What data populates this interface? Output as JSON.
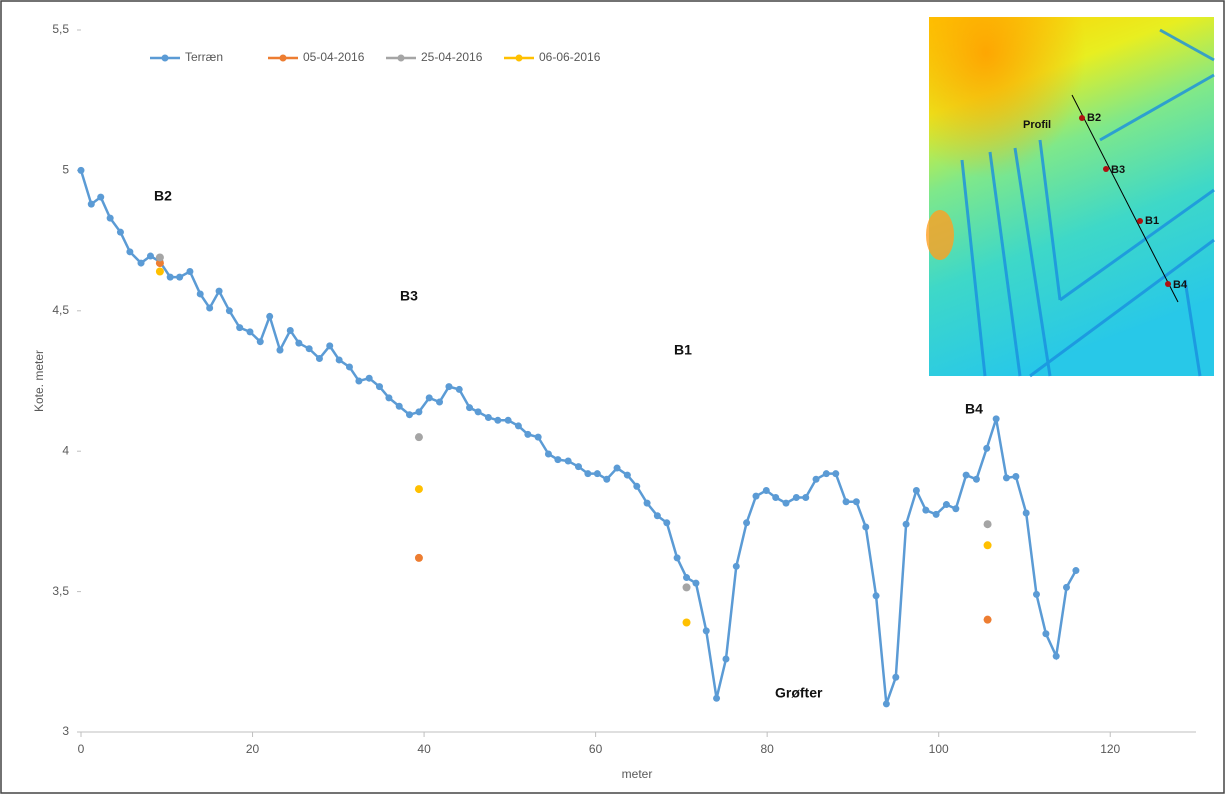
{
  "chart_data": {
    "type": "line",
    "x_label": "meter",
    "y_label": "Kote. meter",
    "xlim": [
      0,
      130
    ],
    "xticks": [
      0,
      20,
      40,
      60,
      80,
      100,
      120
    ],
    "ylim": [
      3,
      5.5
    ],
    "yticks": [
      3,
      {
        "value": 3.5,
        "label": "3,5"
      },
      4,
      {
        "value": 4.5,
        "label": "4,5"
      },
      5,
      {
        "value": 5.5,
        "label": "5,5"
      }
    ],
    "legend": "top-left",
    "series": [
      {
        "name": "Terræn",
        "color": "#5b9bd5",
        "style": "line",
        "x": [
          0,
          1.2,
          2.3,
          3.4,
          4.6,
          5.7,
          7.0,
          8.1,
          9.2,
          10.4,
          11.5,
          12.7,
          13.9,
          15.0,
          16.1,
          17.3,
          18.5,
          19.7,
          20.9,
          22.0,
          23.2,
          24.4,
          25.4,
          26.6,
          27.8,
          29.0,
          30.1,
          31.3,
          32.4,
          33.6,
          34.8,
          35.9,
          37.1,
          38.3,
          39.4,
          40.6,
          41.8,
          42.9,
          44.1,
          45.3,
          46.3,
          47.5,
          48.6,
          49.8,
          51.0,
          52.1,
          53.3,
          54.5,
          55.6,
          56.8,
          58.0,
          59.1,
          60.2,
          61.3,
          62.5,
          63.7,
          64.8,
          66.0,
          67.2,
          68.3,
          69.5,
          70.6,
          71.7,
          72.9,
          74.1,
          75.2,
          76.4,
          77.6,
          78.7,
          79.9,
          81.0,
          82.2,
          83.4,
          84.5,
          85.7,
          86.9,
          88.0,
          89.2,
          90.4,
          91.5,
          92.7,
          93.9,
          95.0,
          96.2,
          97.4,
          98.5,
          99.7,
          100.9,
          102.0,
          103.2,
          104.4,
          105.6,
          106.7,
          107.9,
          109.0,
          110.2,
          111.4,
          112.5,
          113.7,
          114.9,
          116.0
        ],
        "values": [
          5.0,
          4.88,
          4.905,
          4.83,
          4.78,
          4.71,
          4.67,
          4.695,
          4.675,
          4.62,
          4.62,
          4.64,
          4.56,
          4.51,
          4.57,
          4.5,
          4.44,
          4.425,
          4.39,
          4.48,
          4.36,
          4.43,
          4.385,
          4.365,
          4.33,
          4.375,
          4.325,
          4.3,
          4.25,
          4.26,
          4.23,
          4.19,
          4.16,
          4.13,
          4.14,
          4.19,
          4.175,
          4.23,
          4.22,
          4.155,
          4.14,
          4.12,
          4.11,
          4.11,
          4.09,
          4.06,
          4.05,
          3.99,
          3.97,
          3.965,
          3.945,
          3.92,
          3.92,
          3.9,
          3.94,
          3.915,
          3.875,
          3.815,
          3.77,
          3.745,
          3.62,
          3.55,
          3.53,
          3.36,
          3.12,
          3.26,
          3.59,
          3.745,
          3.84,
          3.86,
          3.835,
          3.815,
          3.835,
          3.835,
          3.9,
          3.92,
          3.92,
          3.82,
          3.82,
          3.73,
          3.485,
          3.1,
          3.195,
          3.74,
          3.86,
          3.79,
          3.775,
          3.81,
          3.795,
          3.915,
          3.9,
          4.01,
          4.115,
          3.905,
          3.91,
          3.78,
          3.49,
          3.35,
          3.27,
          3.515,
          3.575
        ]
      },
      {
        "name": "05-04-2016",
        "color": "#ed7d31",
        "style": "points",
        "x": [
          9.2,
          39.4,
          105.7
        ],
        "values": [
          4.67,
          3.62,
          3.4
        ]
      },
      {
        "name": "25-04-2016",
        "color": "#a5a5a5",
        "style": "points",
        "x": [
          9.2,
          39.4,
          70.6,
          105.7
        ],
        "values": [
          4.69,
          4.05,
          3.515,
          3.74
        ]
      },
      {
        "name": "06-06-2016",
        "color": "#ffc000",
        "style": "points",
        "x": [
          9.2,
          39.4,
          70.6,
          105.7
        ],
        "values": [
          4.64,
          3.865,
          3.39,
          3.665
        ]
      }
    ],
    "annotations": [
      "B2",
      "B3",
      "B1",
      "B4",
      "Grøfter"
    ]
  },
  "inset": {
    "labels": [
      "Profil",
      "B2",
      "B3",
      "B1",
      "B4"
    ]
  }
}
